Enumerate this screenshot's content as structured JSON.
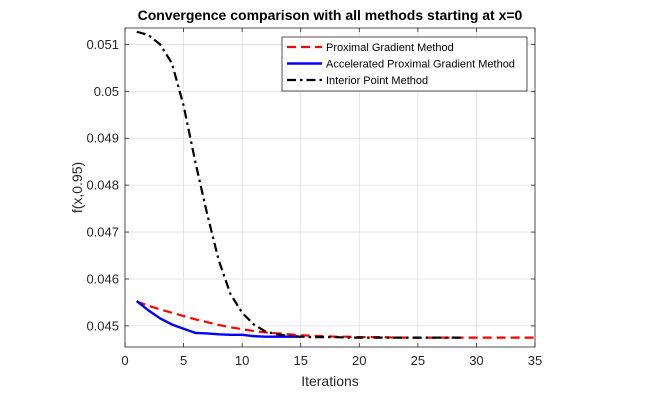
{
  "chart_data": {
    "type": "line",
    "title": "Convergence comparison with all methods starting at x=0",
    "xlabel": "Iterations",
    "ylabel": "f(x,0.95)",
    "xlim": [
      0,
      35
    ],
    "ylim": [
      0.04455,
      0.05135
    ],
    "xticks": [
      0,
      5,
      10,
      15,
      20,
      25,
      30,
      35
    ],
    "yticks": [
      0.045,
      0.046,
      0.047,
      0.048,
      0.049,
      0.05,
      0.051
    ],
    "ytick_labels": [
      "0.045",
      "0.046",
      "0.047",
      "0.048",
      "0.049",
      "0.05",
      "0.051"
    ],
    "grid": true,
    "legend_position": "top-right",
    "series": [
      {
        "name": "Proximal Gradient Method",
        "color": "#ff0000",
        "style": "dashed",
        "x": [
          1,
          2,
          3,
          4,
          5,
          6,
          7,
          8,
          9,
          10,
          11,
          12,
          13,
          14,
          15,
          16,
          17,
          18,
          19,
          20,
          21,
          22,
          23,
          24,
          25,
          26,
          27,
          28,
          29,
          30,
          31,
          32,
          33,
          34,
          35
        ],
        "y": [
          0.04552,
          0.04543,
          0.04535,
          0.04528,
          0.04521,
          0.04514,
          0.04508,
          0.04502,
          0.04497,
          0.04493,
          0.04489,
          0.04486,
          0.04484,
          0.04482,
          0.0448,
          0.04479,
          0.04478,
          0.04477,
          0.04477,
          0.04476,
          0.04476,
          0.04476,
          0.04475,
          0.04475,
          0.04475,
          0.04475,
          0.04475,
          0.04475,
          0.04475,
          0.04475,
          0.04475,
          0.04475,
          0.04475,
          0.04475,
          0.04475
        ]
      },
      {
        "name": "Accelerated Proximal Gradient Method",
        "color": "#0000ff",
        "style": "solid",
        "x": [
          1,
          2,
          3,
          4,
          5,
          6,
          7,
          8,
          9,
          10,
          11,
          12,
          13,
          14,
          15
        ],
        "y": [
          0.04553,
          0.04533,
          0.04516,
          0.04503,
          0.04494,
          0.04485,
          0.04484,
          0.04482,
          0.04481,
          0.04481,
          0.04478,
          0.04477,
          0.04477,
          0.04477,
          0.04477
        ]
      },
      {
        "name": "Interior Point Method",
        "color": "#000000",
        "style": "dashdot",
        "x": [
          1,
          2,
          3,
          4,
          5,
          6,
          7,
          8,
          9,
          10,
          11,
          12,
          13,
          14,
          15,
          16,
          17,
          18,
          19,
          20,
          21,
          22,
          23,
          24,
          25,
          26,
          27,
          28,
          29
        ],
        "y": [
          0.05127,
          0.0512,
          0.051,
          0.0506,
          0.0497,
          0.0485,
          0.0474,
          0.0464,
          0.04568,
          0.04528,
          0.04503,
          0.04488,
          0.04482,
          0.04479,
          0.04477,
          0.04476,
          0.04476,
          0.04476,
          0.04475,
          0.04475,
          0.04475,
          0.04475,
          0.04475,
          0.04475,
          0.04475,
          0.04475,
          0.04475,
          0.04475,
          0.04475
        ]
      }
    ]
  }
}
